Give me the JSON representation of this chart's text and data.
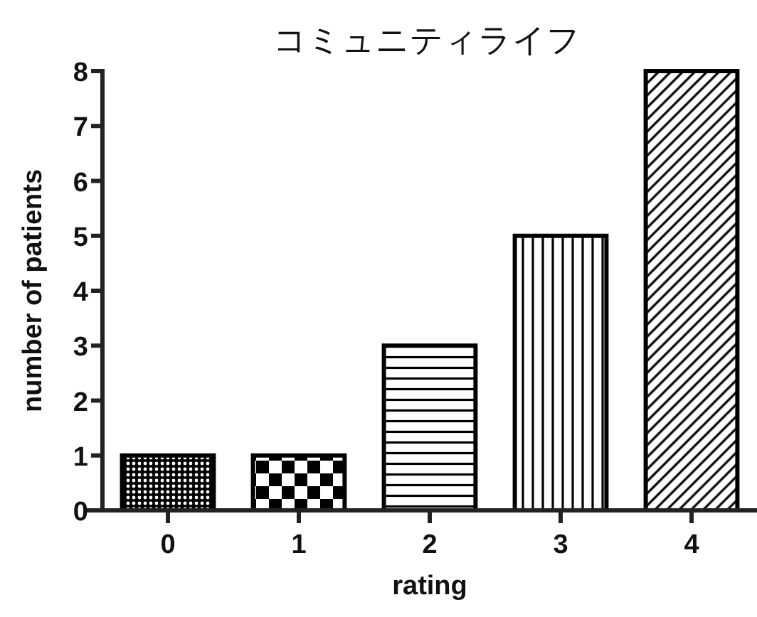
{
  "chart_data": {
    "type": "bar",
    "title": "コミュニティライフ",
    "xlabel": "rating",
    "ylabel": "number of patients",
    "categories": [
      "0",
      "1",
      "2",
      "3",
      "4"
    ],
    "values": [
      1,
      1,
      3,
      5,
      8
    ],
    "color": "#000000",
    "ylim": [
      0,
      8
    ],
    "yticks": [
      0,
      1,
      2,
      3,
      4,
      5,
      6,
      7,
      8
    ]
  }
}
